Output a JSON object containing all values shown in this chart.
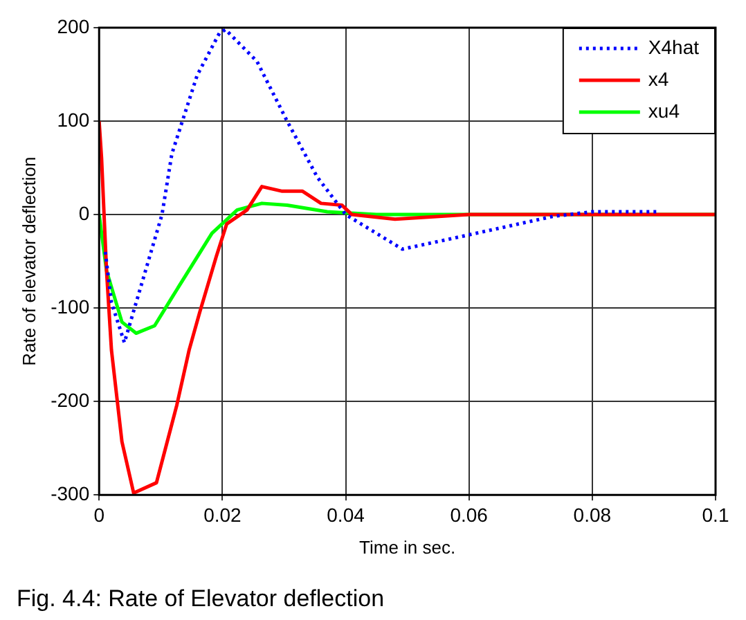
{
  "chart_data": {
    "type": "line",
    "xlabel": "Time in sec.",
    "ylabel": "Rate of elevator deflection",
    "annotations": [
      "Fig. 4.4: Rate of Elevator deflection"
    ],
    "xlim": [
      0,
      0.1
    ],
    "xticks": [
      0,
      0.02,
      0.04,
      0.06,
      0.08,
      0.1
    ],
    "ylim": [
      -300,
      200
    ],
    "yticks": [
      -300,
      -200,
      -100,
      0,
      100,
      200
    ],
    "grid": true,
    "legend": "top right",
    "marker": "none",
    "series": [
      {
        "name": "X4hat",
        "color": "#0000ff",
        "line_style": "dotted",
        "x": [
          0.001,
          0.002,
          0.0041,
          0.0102,
          0.0118,
          0.0159,
          0.0195,
          0.0205,
          0.0256,
          0.0305,
          0.0354,
          0.04,
          0.0492,
          0.0598,
          0.0736,
          0.08,
          0.091
        ],
        "values": [
          -40,
          -94,
          -137,
          0,
          65,
          149,
          194,
          198,
          164,
          100,
          40,
          0,
          -37,
          -22,
          -2,
          3,
          3
        ]
      },
      {
        "name": "x4",
        "color": "#ff0000",
        "line_style": "solid",
        "x": [
          0,
          0.0004,
          0.0012,
          0.002,
          0.0037,
          0.0056,
          0.0093,
          0.0126,
          0.0146,
          0.0163,
          0.019,
          0.0207,
          0.024,
          0.0264,
          0.0297,
          0.033,
          0.036,
          0.0394,
          0.041,
          0.048,
          0.06,
          0.1
        ],
        "values": [
          100,
          60,
          -60,
          -145,
          -243,
          -298,
          -287,
          -204,
          -145,
          -105,
          -45,
          -10,
          5,
          30,
          25,
          25,
          12,
          10,
          0,
          -5,
          0,
          0
        ]
      },
      {
        "name": "xu4",
        "color": "#00ff00",
        "line_style": "solid",
        "x": [
          0,
          0.0012,
          0.0037,
          0.006,
          0.009,
          0.0117,
          0.015,
          0.0183,
          0.0224,
          0.0264,
          0.0305,
          0.037,
          0.045,
          0.1
        ],
        "values": [
          0,
          -60,
          -115,
          -127,
          -119,
          -90,
          -55,
          -20,
          5,
          12,
          10,
          3,
          0,
          0
        ]
      }
    ]
  }
}
